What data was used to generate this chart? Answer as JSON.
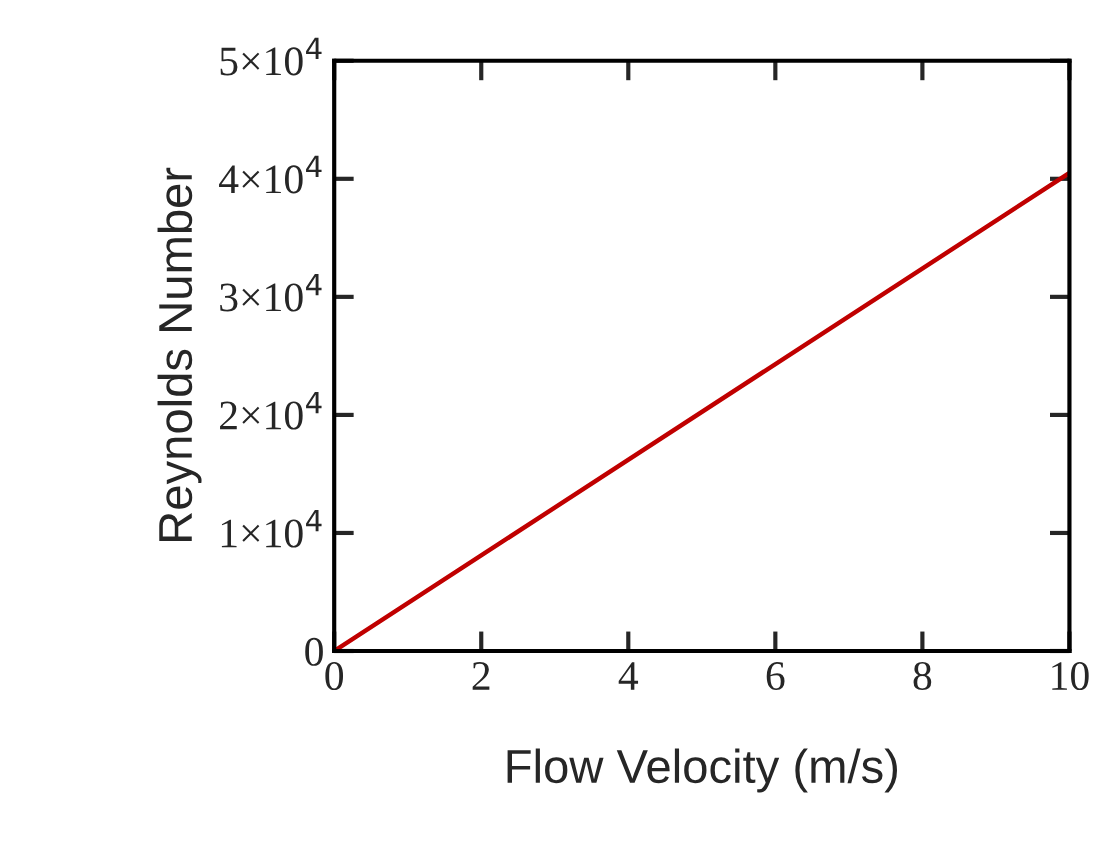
{
  "chart_data": {
    "type": "line",
    "xlabel": "Flow Velocity (m/s)",
    "ylabel": "Reynolds Number",
    "x": [
      0,
      10
    ],
    "series": [
      {
        "color": "#c00000",
        "values": [
          0,
          40500
        ]
      }
    ],
    "xlim": [
      0,
      10
    ],
    "xticks": [
      0,
      2,
      4,
      6,
      8,
      10
    ],
    "ylim": [
      0,
      50000
    ],
    "yticks": [
      {
        "value": 0,
        "label": "0"
      },
      {
        "value": 10000,
        "label": "1×10$^{4}$"
      },
      {
        "value": 20000,
        "label": "2×10$^{4}$"
      },
      {
        "value": 30000,
        "label": "3×10$^{4}$"
      },
      {
        "value": 40000,
        "label": "4×10$^{4}$"
      },
      {
        "value": 50000,
        "label": "5×10$^{4}$"
      }
    ],
    "grid": false,
    "marker": "none",
    "line_style": "solid"
  }
}
